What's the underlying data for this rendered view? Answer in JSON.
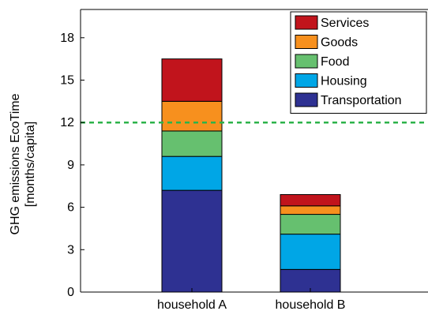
{
  "chart_data": {
    "type": "bar",
    "stacked": true,
    "categories": [
      "household A",
      "household B"
    ],
    "series": [
      {
        "name": "Transportation",
        "color": "#2e3192",
        "values": [
          7.2,
          1.6
        ]
      },
      {
        "name": "Housing",
        "color": "#00a6e6",
        "values": [
          2.4,
          2.5
        ]
      },
      {
        "name": "Food",
        "color": "#66c06f",
        "values": [
          1.8,
          1.4
        ]
      },
      {
        "name": "Goods",
        "color": "#f7901e",
        "values": [
          2.1,
          0.6
        ]
      },
      {
        "name": "Services",
        "color": "#c1141c",
        "values": [
          3.0,
          0.8
        ]
      }
    ],
    "ylabel_lines": [
      "GHG emissions EcoTime",
      "[months/capita]"
    ],
    "ylim": [
      0,
      20
    ],
    "yticks": [
      "0",
      "3",
      "6",
      "9",
      "12",
      "15",
      "18"
    ],
    "reference_line": {
      "value": 12,
      "style": "dashed",
      "color": "#2db34a"
    },
    "legend_position": "top-right",
    "grid": false
  }
}
